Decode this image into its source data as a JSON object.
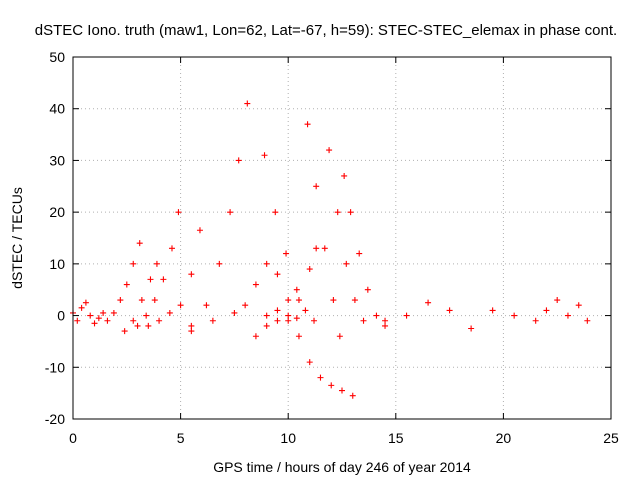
{
  "chart_data": {
    "type": "scatter",
    "title": "dSTEC Iono. truth (maw1, Lon=62, Lat=-67, h=59): STEC-STEC_elemax in phase cont.",
    "xlabel": "GPS time / hours of day 246 of year 2014",
    "ylabel": "dSTEC  / TECUs",
    "xlim": [
      0,
      25
    ],
    "ylim": [
      -20,
      50
    ],
    "xticks": [
      0,
      5,
      10,
      15,
      20,
      25
    ],
    "yticks": [
      -20,
      -10,
      0,
      10,
      20,
      30,
      40,
      50
    ],
    "grid": true,
    "marker": "plus",
    "color": "#ff0000",
    "series": [
      {
        "x": [
          0.0,
          0.2,
          0.4,
          0.6,
          0.8,
          1.0,
          1.2,
          1.4
        ],
        "y": [
          0.5,
          -1.0,
          1.5,
          2.5,
          0.0,
          -1.5,
          -0.5,
          0.5
        ]
      },
      {
        "x": [
          1.6,
          1.9,
          2.2,
          2.5,
          2.8,
          3.1
        ],
        "y": [
          -1.0,
          0.5,
          3.0,
          6.0,
          10.0,
          14.0
        ]
      },
      {
        "x": [
          2.4,
          2.8,
          3.2,
          3.6,
          3.9
        ],
        "y": [
          -3.0,
          -1.0,
          3.0,
          7.0,
          10.0
        ]
      },
      {
        "x": [
          3.0,
          3.4,
          3.8,
          4.2,
          4.6,
          4.9
        ],
        "y": [
          -2.0,
          0.0,
          3.0,
          7.0,
          13.0,
          20.0
        ]
      },
      {
        "x": [
          3.5,
          4.0,
          4.5,
          5.0,
          5.5,
          5.9
        ],
        "y": [
          -2.0,
          -1.0,
          0.5,
          2.0,
          8.0,
          16.5
        ]
      },
      {
        "x": [
          5.5,
          6.2,
          6.8,
          7.3,
          7.7,
          8.1
        ],
        "y": [
          -3.0,
          2.0,
          10.0,
          20.0,
          30.0,
          41.0
        ]
      },
      {
        "x": [
          5.5,
          6.5,
          7.5,
          8.0,
          8.5,
          9.0,
          9.5,
          10.0,
          10.4
        ],
        "y": [
          -2.0,
          -1.0,
          0.5,
          2.0,
          6.0,
          10.0,
          8.0,
          3.0,
          -0.5
        ]
      },
      {
        "x": [
          8.5,
          9.0,
          9.5,
          10.0,
          10.5,
          11.0,
          11.5,
          12.0,
          12.5,
          13.0
        ],
        "y": [
          -4.0,
          0.0,
          1.0,
          -1.0,
          -4.0,
          -9.0,
          -12.0,
          -13.5,
          -14.5,
          -15.5
        ]
      },
      {
        "x": [
          8.9,
          9.4,
          9.9,
          10.4,
          10.8,
          11.2
        ],
        "y": [
          31.0,
          20.0,
          12.0,
          5.0,
          1.0,
          -1.0
        ]
      },
      {
        "x": [
          9.0,
          9.5,
          10.0,
          10.5,
          11.0,
          11.3
        ],
        "y": [
          -2.0,
          -1.0,
          0.0,
          3.0,
          9.0,
          13.0
        ]
      },
      {
        "x": [
          10.9,
          11.3,
          11.7,
          12.1,
          12.4
        ],
        "y": [
          37.0,
          25.0,
          13.0,
          3.0,
          -4.0
        ]
      },
      {
        "x": [
          11.9,
          12.3,
          12.7,
          13.1,
          13.5
        ],
        "y": [
          32.0,
          20.0,
          10.0,
          3.0,
          -1.0
        ]
      },
      {
        "x": [
          12.6,
          12.9,
          13.3,
          13.7,
          14.1,
          14.5
        ],
        "y": [
          27.0,
          20.0,
          12.0,
          5.0,
          0.0,
          -2.0
        ]
      },
      {
        "x": [
          14.5,
          15.5,
          16.5,
          17.5,
          18.5,
          19.5,
          20.5
        ],
        "y": [
          -1.0,
          0.0,
          2.5,
          1.0,
          -2.5,
          1.0,
          0.0
        ]
      },
      {
        "x": [
          21.5,
          22.0,
          22.5,
          23.0,
          23.5,
          23.9
        ],
        "y": [
          -1.0,
          1.0,
          3.0,
          0.0,
          2.0,
          -1.0
        ]
      }
    ]
  }
}
